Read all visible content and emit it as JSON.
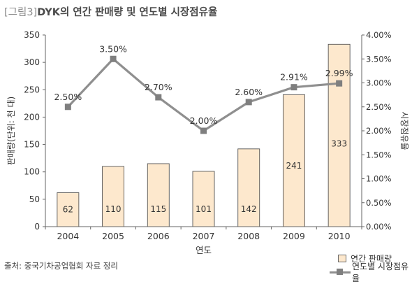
{
  "figure": {
    "label": "[그림3]",
    "title": "DYK의 연간 판매량 및 연도별 시장점유율"
  },
  "source_note": "출처: 중국기차공업협회 자료 정리",
  "chart_data": {
    "type": "bar+line",
    "categories": [
      "2004",
      "2005",
      "2006",
      "2007",
      "2008",
      "2009",
      "2010"
    ],
    "xlabel": "연도",
    "ylabel_left": "판매량(단위: 천 대)",
    "ylabel_right": "시장점유율",
    "yticks_left": [
      "0",
      "50",
      "100",
      "150",
      "200",
      "250",
      "300",
      "350"
    ],
    "yticks_right": [
      "0.00%",
      "0.50%",
      "1.00%",
      "1.50%",
      "2.00%",
      "2.50%",
      "3.00%",
      "3.50%",
      "4.00%"
    ],
    "ylim_left": [
      0,
      350
    ],
    "ylim_right": [
      0,
      4.0
    ],
    "grid": false,
    "legend_position": "bottom-right",
    "series": [
      {
        "name": "연간 판매량",
        "type": "bar",
        "axis": "left",
        "color": "#fde8cd",
        "values": [
          62,
          110,
          115,
          101,
          142,
          241,
          333
        ],
        "labels": [
          "62",
          "110",
          "115",
          "101",
          "142",
          "241",
          "333"
        ]
      },
      {
        "name": "연도별 시장점유율",
        "type": "line",
        "axis": "right",
        "color": "#8f8f8f",
        "values": [
          2.5,
          3.5,
          2.7,
          2.0,
          2.6,
          2.91,
          2.99
        ],
        "labels": [
          "2.50%",
          "3.50%",
          "2.70%",
          "2.00%",
          "2.60%",
          "2.91%",
          "2.99%"
        ]
      }
    ]
  }
}
